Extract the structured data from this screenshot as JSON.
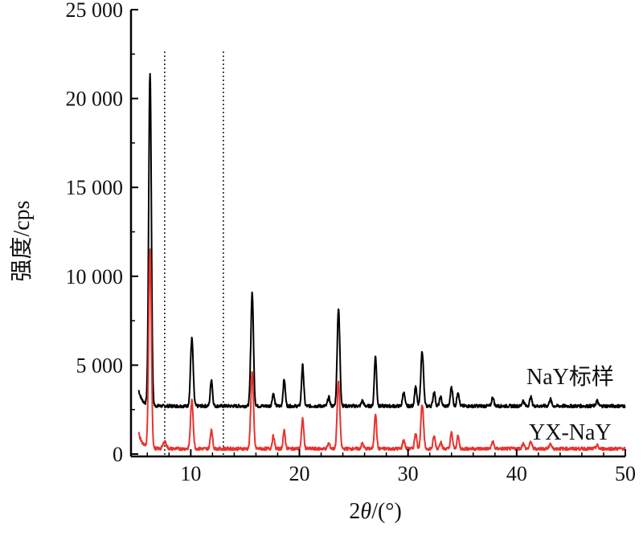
{
  "chart_data": {
    "type": "line",
    "xlabel": "2θ/(°)",
    "ylabel": "强度/cps",
    "xlim": [
      4.5,
      50
    ],
    "ylim": [
      0,
      25000
    ],
    "x_ticks": [
      10,
      20,
      30,
      40,
      50
    ],
    "y_ticks": [
      0,
      5000,
      10000,
      15000,
      20000,
      25000
    ],
    "x_tick_labels": [
      "10",
      "20",
      "30",
      "40",
      "50"
    ],
    "y_tick_labels": [
      "0",
      "5 000",
      "10 000",
      "15 000",
      "20 000",
      "25 000"
    ],
    "reference_lines_x": [
      7.6,
      13.0
    ],
    "series": [
      {
        "name": "NaY标样",
        "color": "#000000",
        "baseline": 2700,
        "peaks": [
          [
            6.25,
            18700,
            0.12
          ],
          [
            10.1,
            3800,
            0.12
          ],
          [
            11.9,
            1500,
            0.1
          ],
          [
            15.65,
            6400,
            0.12
          ],
          [
            17.6,
            700,
            0.1
          ],
          [
            18.6,
            1500,
            0.1
          ],
          [
            20.3,
            2300,
            0.1
          ],
          [
            22.7,
            500,
            0.1
          ],
          [
            23.6,
            5500,
            0.12
          ],
          [
            25.8,
            300,
            0.1
          ],
          [
            27.0,
            2800,
            0.1
          ],
          [
            29.6,
            800,
            0.1
          ],
          [
            30.7,
            1100,
            0.1
          ],
          [
            31.3,
            3100,
            0.12
          ],
          [
            32.4,
            800,
            0.1
          ],
          [
            33.0,
            500,
            0.1
          ],
          [
            34.0,
            1100,
            0.1
          ],
          [
            34.6,
            800,
            0.1
          ],
          [
            37.8,
            500,
            0.1
          ],
          [
            40.6,
            300,
            0.1
          ],
          [
            41.3,
            500,
            0.1
          ],
          [
            43.1,
            400,
            0.1
          ],
          [
            47.4,
            300,
            0.1
          ]
        ]
      },
      {
        "name": "YX-NaY",
        "color": "#e8332e",
        "baseline": 300,
        "peaks": [
          [
            6.25,
            11100,
            0.12
          ],
          [
            7.6,
            400,
            0.15
          ],
          [
            10.1,
            2700,
            0.12
          ],
          [
            11.9,
            1100,
            0.1
          ],
          [
            15.65,
            4400,
            0.12
          ],
          [
            17.6,
            700,
            0.1
          ],
          [
            18.6,
            1000,
            0.1
          ],
          [
            20.3,
            1700,
            0.1
          ],
          [
            22.7,
            300,
            0.1
          ],
          [
            23.6,
            3800,
            0.12
          ],
          [
            25.8,
            300,
            0.1
          ],
          [
            27.0,
            2000,
            0.1
          ],
          [
            29.6,
            500,
            0.1
          ],
          [
            30.7,
            900,
            0.1
          ],
          [
            31.3,
            2500,
            0.12
          ],
          [
            32.4,
            700,
            0.1
          ],
          [
            33.0,
            400,
            0.1
          ],
          [
            34.0,
            900,
            0.1
          ],
          [
            34.6,
            700,
            0.1
          ],
          [
            37.8,
            400,
            0.1
          ],
          [
            40.6,
            300,
            0.1
          ],
          [
            41.3,
            400,
            0.1
          ],
          [
            43.1,
            300,
            0.1
          ],
          [
            47.4,
            200,
            0.1
          ]
        ]
      }
    ]
  }
}
